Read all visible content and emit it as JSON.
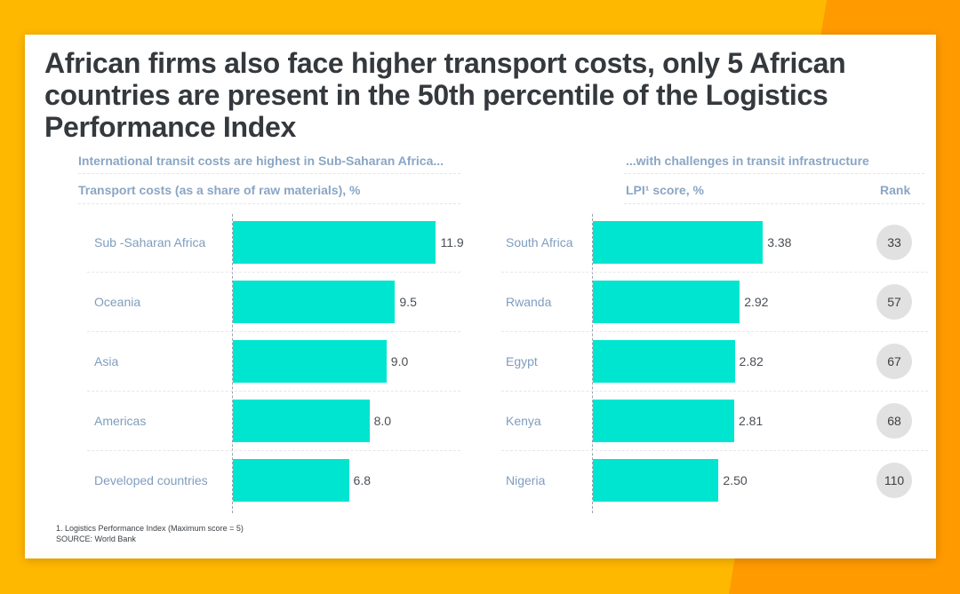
{
  "title": "African firms also face higher transport costs, only 5 African countries are present in the 50th percentile of the Logistics Performance Index",
  "colors": {
    "bar": "#00E5CF",
    "background": "#FFB800",
    "label": "#7F9DBE",
    "title": "#35393D",
    "rank_circle": "#E1E1E1"
  },
  "chart_data": [
    {
      "type": "bar",
      "orientation": "horizontal",
      "title": "International transit costs are highest in Sub-Saharan Africa...",
      "xlabel": "Transport costs (as a share of raw materials), %",
      "categories": [
        "Sub -Saharan Africa",
        "Oceania",
        "Asia",
        "Americas",
        "Developed countries"
      ],
      "values": [
        11.9,
        9.5,
        9.0,
        8.0,
        6.8
      ],
      "value_labels": [
        "11.9",
        "9.5",
        "9.0",
        "8.0",
        "6.8"
      ],
      "xlim": [
        0,
        12.5
      ]
    },
    {
      "type": "bar",
      "orientation": "horizontal",
      "title": "...with challenges in transit infrastructure",
      "xlabel": "LPI¹ score, %",
      "rank_header": "Rank",
      "categories": [
        "South Africa",
        "Rwanda",
        "Egypt",
        "Kenya",
        "Nigeria"
      ],
      "values": [
        3.38,
        2.92,
        2.82,
        2.81,
        2.5
      ],
      "value_labels": [
        "3.38",
        "2.92",
        "2.82",
        "2.81",
        "2.50"
      ],
      "ranks": [
        "33",
        "57",
        "67",
        "68",
        "110"
      ],
      "xlim": [
        0,
        3.5
      ]
    }
  ],
  "footnote": "1. Logistics Performance Index (Maximum score = 5)",
  "source": "SOURCE: World Bank"
}
